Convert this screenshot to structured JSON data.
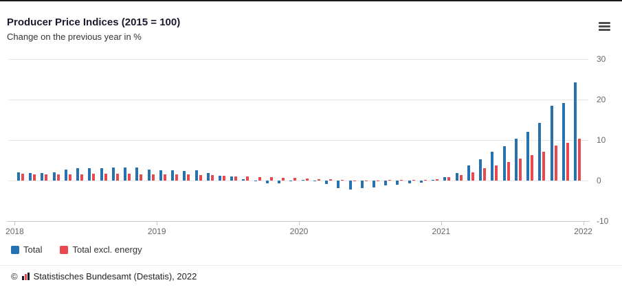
{
  "header": {
    "menu_icon": "hamburger-icon"
  },
  "chart_data": {
    "type": "bar",
    "title": "Producer Price Indices (2015 = 100)",
    "subtitle": "Change on the previous year in %",
    "xlabel": "",
    "ylabel": "Change on the previous year in %",
    "ylim": [
      -10,
      30
    ],
    "yticks": [
      30,
      20,
      10,
      0,
      -10
    ],
    "xticks": [
      "2018",
      "2019",
      "2020",
      "2021",
      "2022"
    ],
    "grid": true,
    "legend_position": "bottom-left",
    "categories": [
      "2018-01",
      "2018-02",
      "2018-03",
      "2018-04",
      "2018-05",
      "2018-06",
      "2018-07",
      "2018-08",
      "2018-09",
      "2018-10",
      "2018-11",
      "2018-12",
      "2019-01",
      "2019-02",
      "2019-03",
      "2019-04",
      "2019-05",
      "2019-06",
      "2019-07",
      "2019-08",
      "2019-09",
      "2019-10",
      "2019-11",
      "2019-12",
      "2020-01",
      "2020-02",
      "2020-03",
      "2020-04",
      "2020-05",
      "2020-06",
      "2020-07",
      "2020-08",
      "2020-09",
      "2020-10",
      "2020-11",
      "2020-12",
      "2021-01",
      "2021-02",
      "2021-03",
      "2021-04",
      "2021-05",
      "2021-06",
      "2021-07",
      "2021-08",
      "2021-09",
      "2021-10",
      "2021-11",
      "2021-12"
    ],
    "series": [
      {
        "name": "Total",
        "color": "#2671b0",
        "values": [
          2.1,
          1.8,
          1.9,
          2.0,
          2.7,
          3.0,
          3.0,
          3.1,
          3.2,
          3.3,
          3.3,
          2.7,
          2.6,
          2.6,
          2.4,
          2.5,
          1.9,
          1.2,
          1.1,
          0.3,
          -0.1,
          -0.6,
          -0.7,
          -0.2,
          0.2,
          -0.1,
          -0.8,
          -1.9,
          -2.2,
          -1.8,
          -1.7,
          -1.2,
          -1.0,
          -0.7,
          -0.5,
          0.2,
          0.9,
          1.9,
          3.7,
          5.2,
          7.2,
          8.5,
          10.4,
          12.0,
          14.2,
          18.4,
          19.2,
          24.2
        ]
      },
      {
        "name": "Total excl. energy",
        "color": "#e8484e",
        "values": [
          1.7,
          1.6,
          1.5,
          1.5,
          1.6,
          1.6,
          1.7,
          1.7,
          1.7,
          1.7,
          1.6,
          1.5,
          1.6,
          1.6,
          1.5,
          1.4,
          1.3,
          1.2,
          1.1,
          1.0,
          0.9,
          0.8,
          0.7,
          0.6,
          0.5,
          0.4,
          0.3,
          0.1,
          -0.1,
          -0.1,
          0.0,
          0.1,
          0.1,
          0.2,
          0.2,
          0.3,
          0.8,
          1.4,
          2.1,
          3.0,
          3.7,
          4.6,
          5.4,
          6.2,
          7.1,
          8.6,
          9.4,
          10.4
        ]
      }
    ]
  },
  "footer": {
    "copyright_symbol": "©",
    "source": "Statistisches Bundesamt (Destatis), 2022"
  }
}
